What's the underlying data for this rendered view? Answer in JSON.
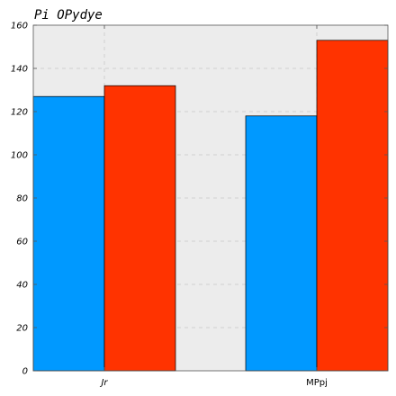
{
  "chart_data": {
    "type": "bar",
    "title": "Pi OPydye",
    "xlabel": "",
    "ylabel": "",
    "categories": [
      "Jr",
      "MPpj"
    ],
    "series": [
      {
        "values": [
          127,
          118
        ],
        "color": "#0099ff"
      },
      {
        "values": [
          132,
          153
        ],
        "color": "#ff3300"
      }
    ],
    "ylim": [
      0,
      160
    ],
    "yticks": [
      0,
      20,
      40,
      60,
      80,
      100,
      120,
      140,
      160
    ],
    "grid": true,
    "legend": "none",
    "background": "#ececec"
  }
}
